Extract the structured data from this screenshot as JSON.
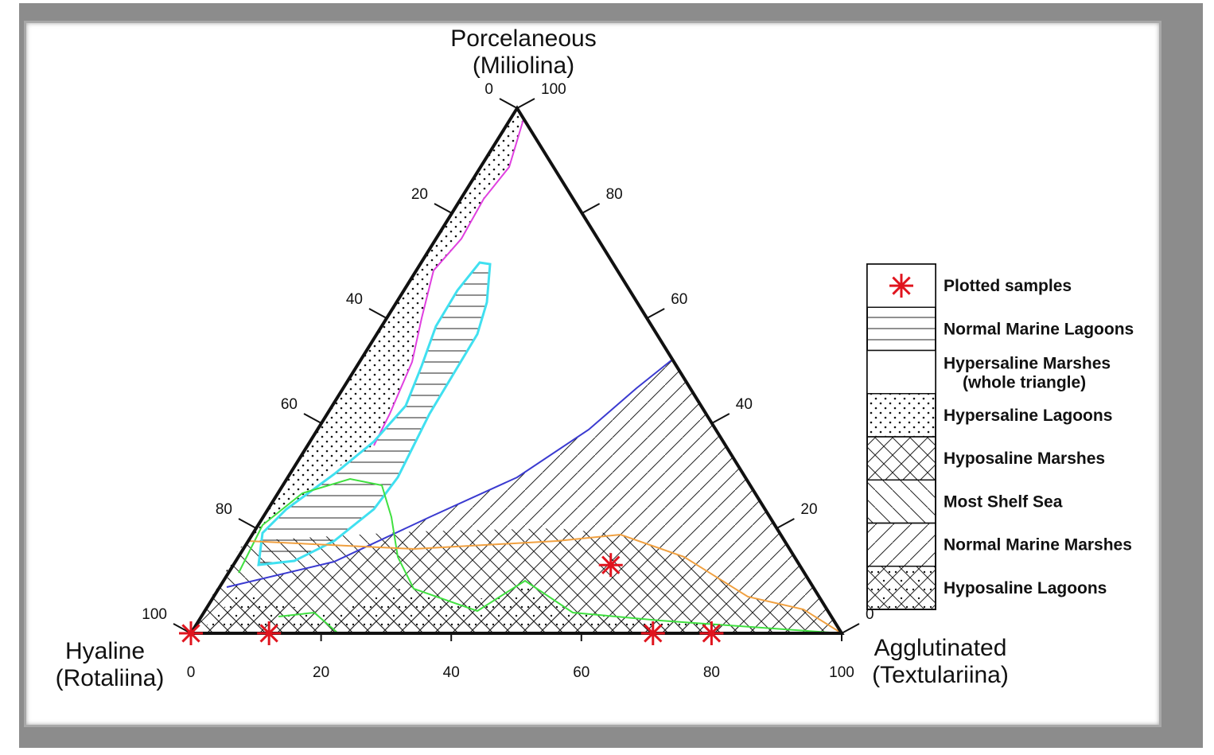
{
  "chart_data": {
    "type": "ternary",
    "vertices": {
      "top": {
        "name": "Porcelaneous",
        "subname": "(Miliolina)"
      },
      "left": {
        "name": "Hyaline",
        "subname": "(Rotaliina)"
      },
      "right": {
        "name": "Agglutinated",
        "subname": "(Textulariina)"
      }
    },
    "axes": {
      "bottom": {
        "ticks": [
          "0",
          "20",
          "40",
          "60",
          "80",
          "100"
        ]
      },
      "left": {
        "ticks": [
          "0",
          "20",
          "40",
          "60",
          "80",
          "100"
        ]
      },
      "right": {
        "ticks": [
          "100",
          "80",
          "60",
          "40",
          "20",
          "0"
        ]
      }
    },
    "samples": [
      {
        "hyaline": 100,
        "agglutinated": 0,
        "porcelaneous": 0
      },
      {
        "hyaline": 88,
        "agglutinated": 12,
        "porcelaneous": 0
      },
      {
        "hyaline": 29,
        "agglutinated": 58,
        "porcelaneous": 13
      },
      {
        "hyaline": 29,
        "agglutinated": 71,
        "porcelaneous": 0
      },
      {
        "hyaline": 20,
        "agglutinated": 80,
        "porcelaneous": 0
      }
    ],
    "legend": {
      "placement": "right",
      "entries": [
        {
          "label": "Plotted samples",
          "pattern": "star"
        },
        {
          "label": "Normal Marine Lagoons",
          "pattern": "horizontal"
        },
        {
          "label": "Hypersaline Marshes",
          "label2": "(whole triangle)",
          "pattern": "blank"
        },
        {
          "label": "Hypersaline Lagoons",
          "pattern": "dots"
        },
        {
          "label": "Hyposaline Marshes",
          "pattern": "cross-hatch"
        },
        {
          "label": "Most Shelf Sea",
          "pattern": "back-diagonal"
        },
        {
          "label": "Normal Marine Marshes",
          "pattern": "diagonal"
        },
        {
          "label": "Hyposaline Lagoons",
          "pattern": "cross-dots"
        }
      ]
    },
    "colors": {
      "sample_marker": "#e0141e",
      "boundary_magenta": "#e040e0",
      "boundary_cyan": "#40e0f0",
      "boundary_blue": "#3a3ad0",
      "boundary_green": "#40e040",
      "boundary_orange": "#f0a040",
      "frame": "#8c8c8c"
    }
  }
}
